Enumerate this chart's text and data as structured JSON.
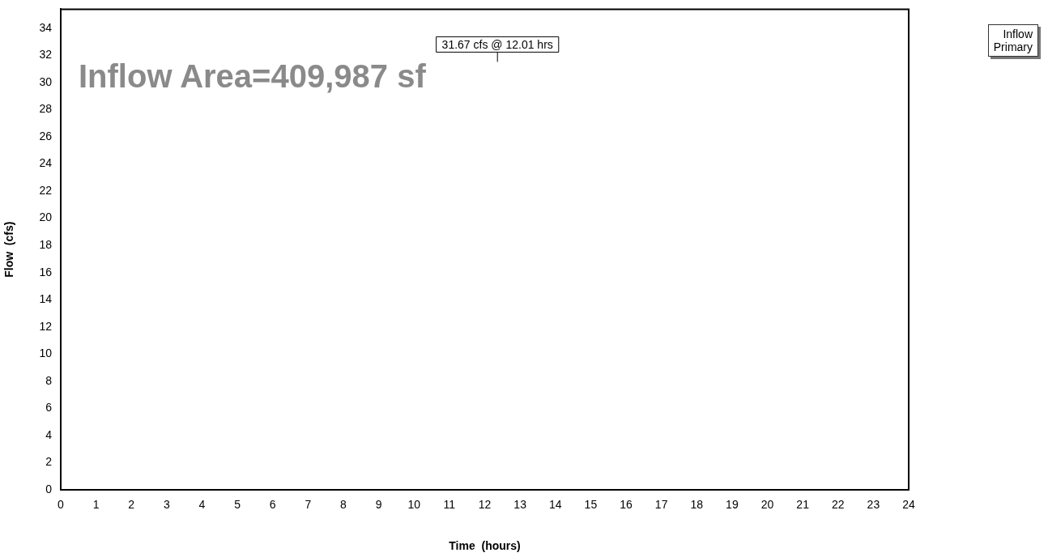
{
  "chart_data": {
    "type": "line",
    "xlabel": "Time  (hours)",
    "ylabel": "Flow  (cfs)",
    "xlim": [
      0,
      24
    ],
    "xticks": [
      0,
      1,
      2,
      3,
      4,
      5,
      6,
      7,
      8,
      9,
      10,
      11,
      12,
      13,
      14,
      15,
      16,
      17,
      18,
      19,
      20,
      21,
      22,
      23,
      24
    ],
    "ylim": [
      0,
      35.4
    ],
    "yticks": [
      0,
      2,
      4,
      6,
      8,
      10,
      12,
      14,
      16,
      18,
      20,
      22,
      24,
      26,
      28,
      30,
      32,
      34
    ],
    "grid": false,
    "annotations": [
      "Inflow Area=409,987 sf",
      "31.67 cfs @ 12.01 hrs",
      "Inflow",
      "Primary"
    ]
  }
}
